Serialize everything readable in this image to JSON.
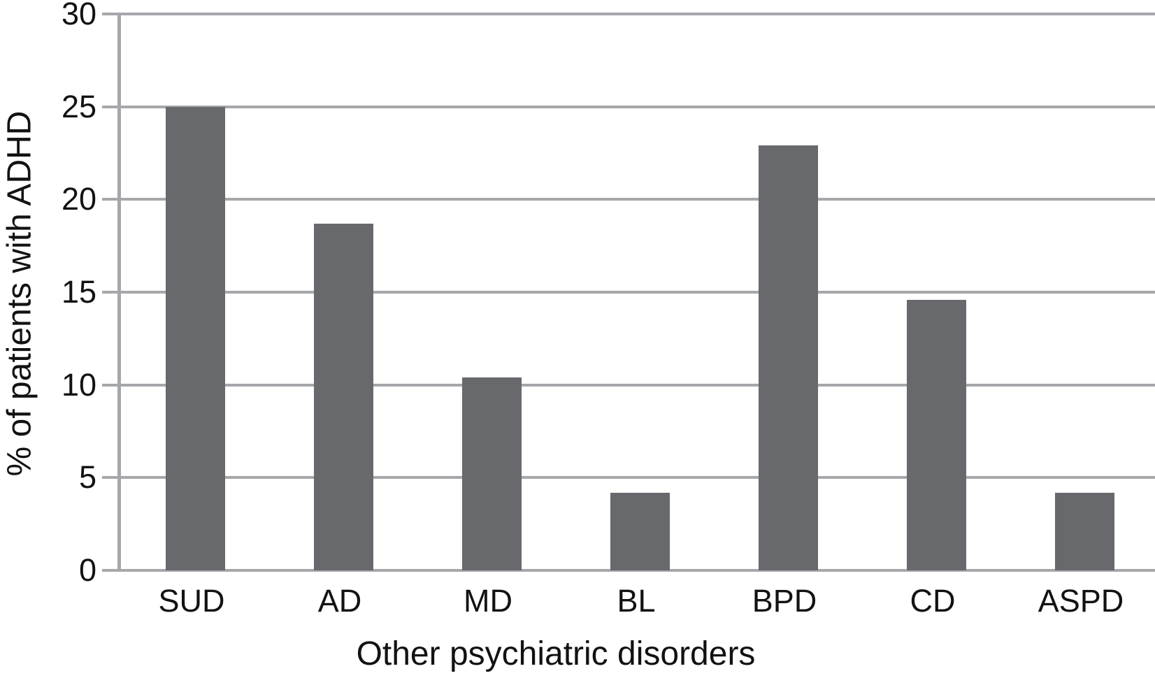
{
  "figure": {
    "background_color": "#ffffff",
    "bar_color": "#67696c",
    "grid_color": "#a5a7aa",
    "text_color": "#121212"
  },
  "chart_data": {
    "type": "bar",
    "categories": [
      "SUD",
      "AD",
      "MD",
      "BL",
      "BPD",
      "CD",
      "ASPD"
    ],
    "values": [
      25.0,
      18.7,
      10.4,
      4.2,
      22.9,
      14.6,
      4.2
    ],
    "title": "",
    "xlabel": "Other psychiatric disorders",
    "ylabel": "% of patients with ADHD",
    "ylim": [
      0,
      30
    ],
    "yticks": [
      0,
      5,
      10,
      15,
      20,
      25,
      30
    ],
    "grid": true,
    "legend_position": "none",
    "bar_orientation": "vertical",
    "series_count": 1
  }
}
